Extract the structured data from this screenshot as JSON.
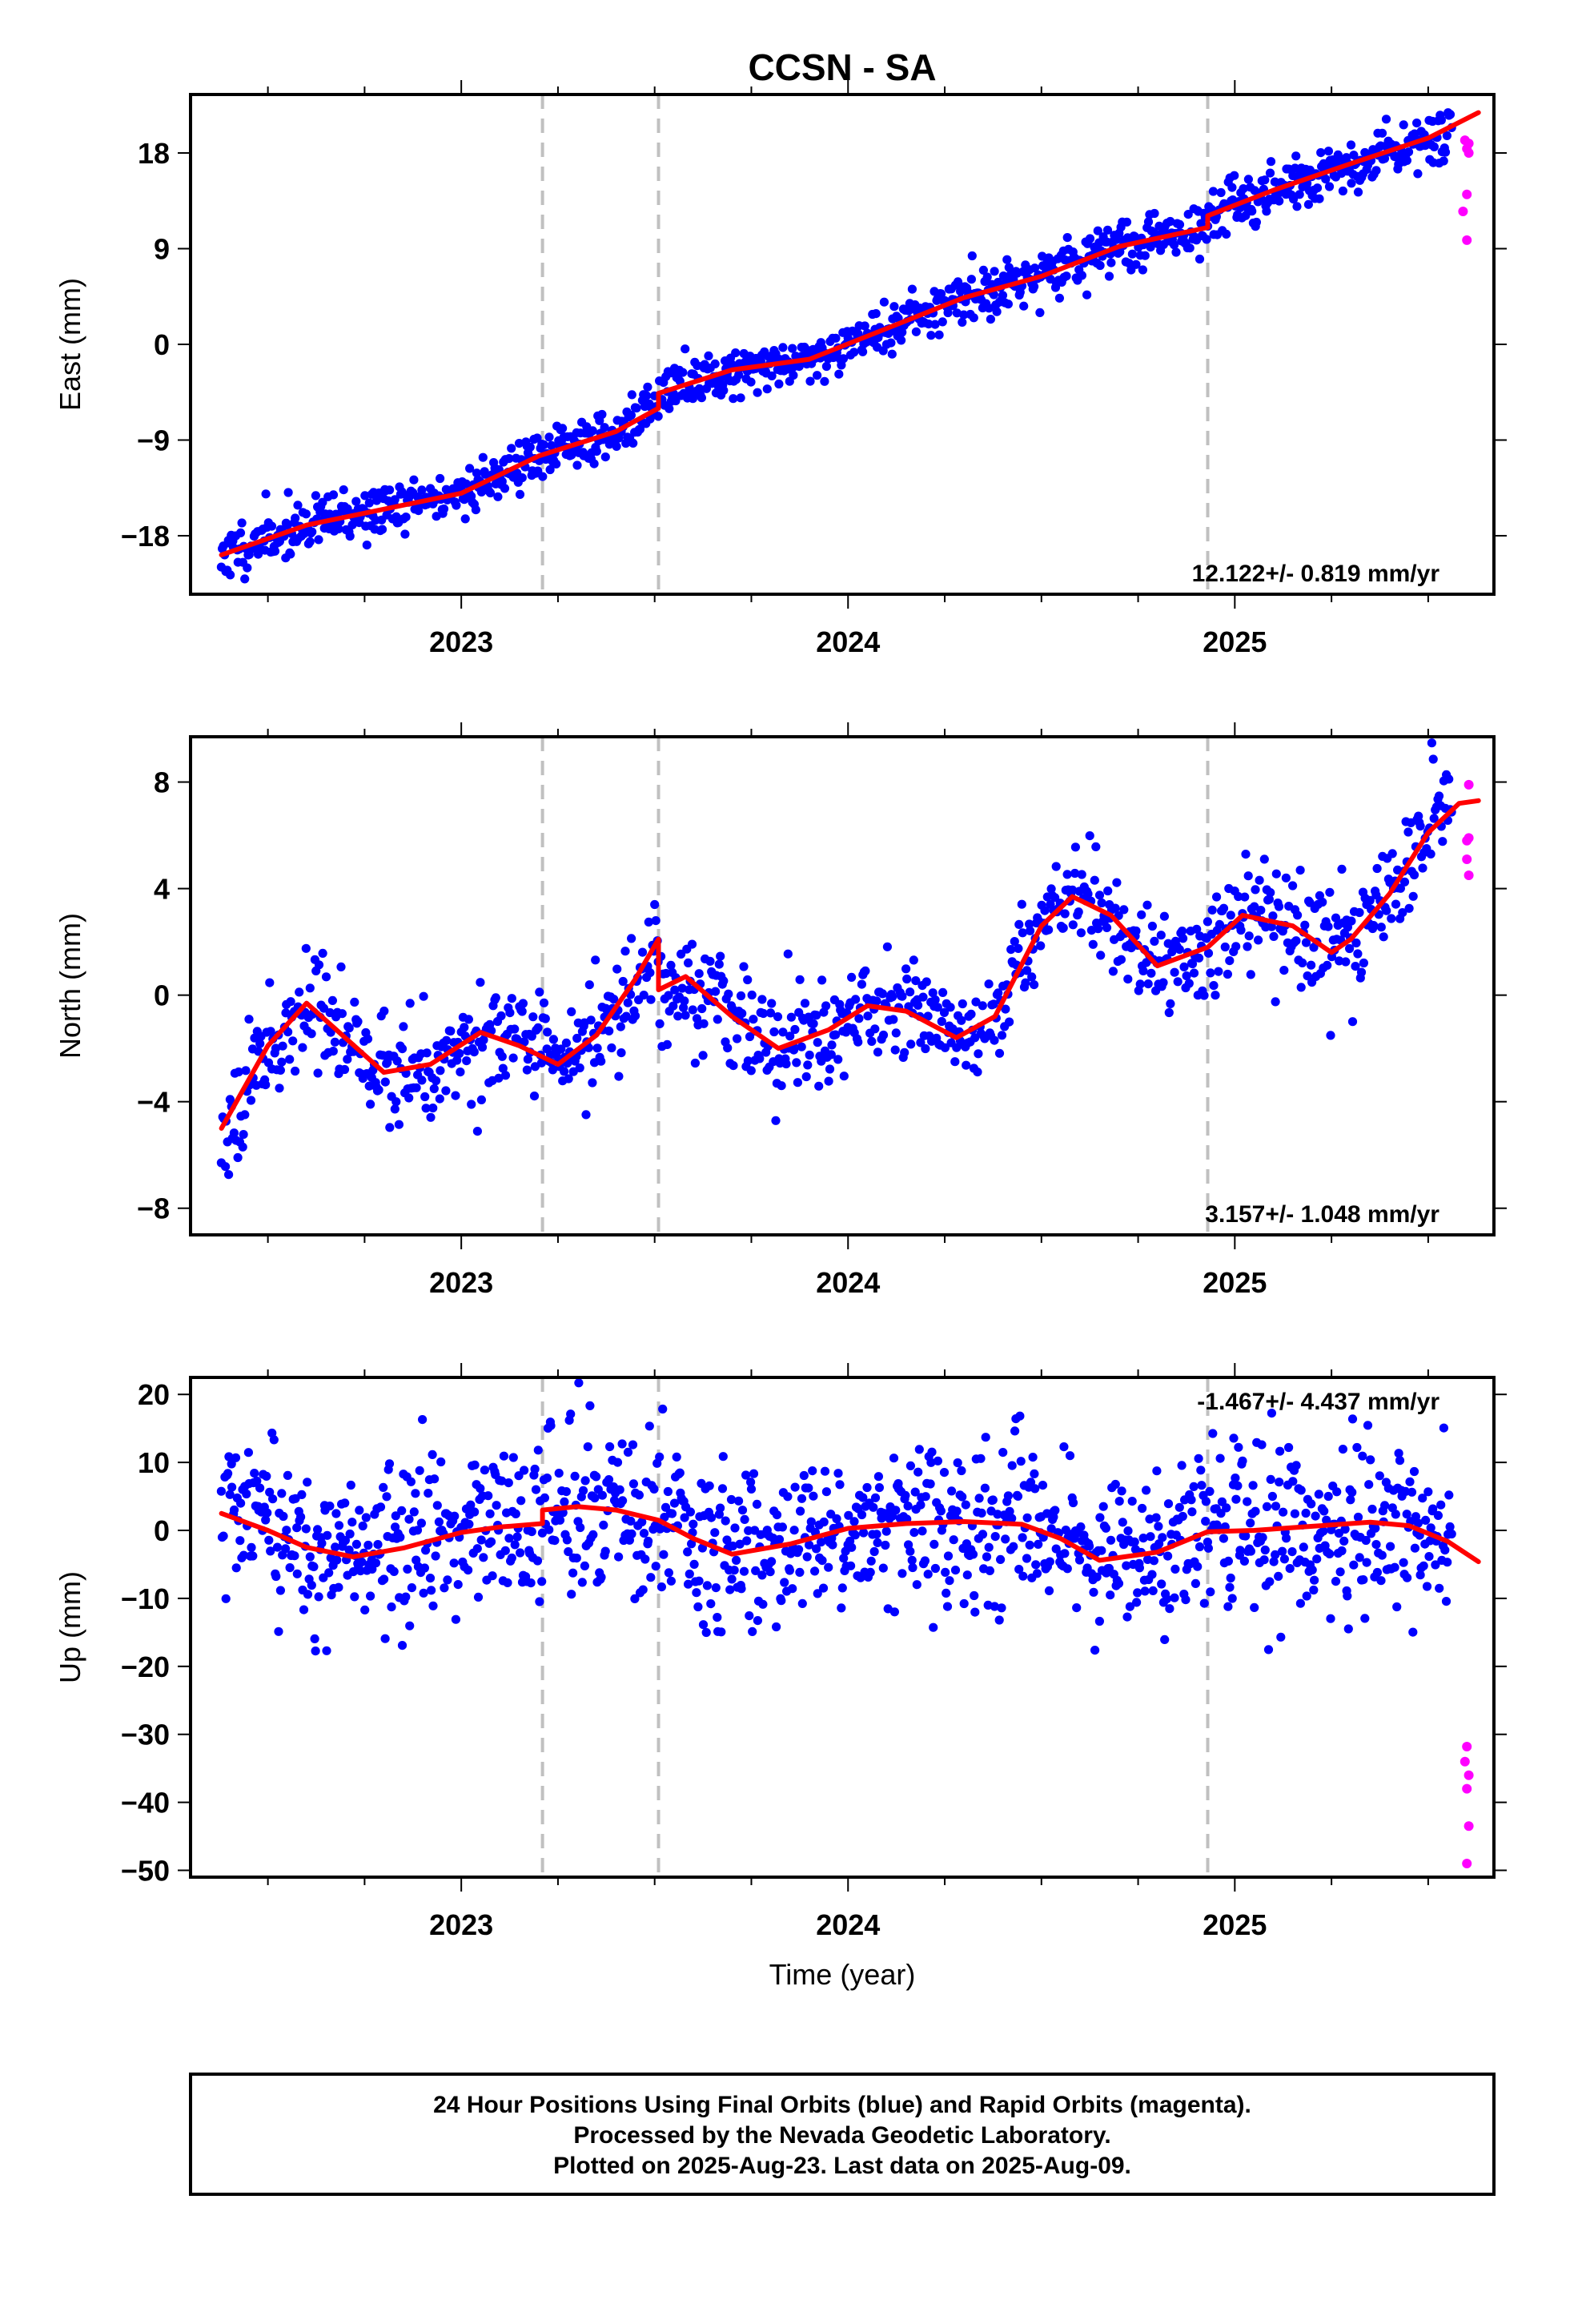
{
  "chart_data": {
    "type": "scatter",
    "title": "CCSN - SA",
    "xlabel": "Time (year)",
    "xlim": [
      2022.3,
      2025.67
    ],
    "x_ticks": [
      2023,
      2024,
      2025
    ],
    "x_tick_labels": [
      "2023",
      "2024",
      "2025"
    ],
    "event_lines_x": [
      2023.21,
      2023.51,
      2024.93
    ],
    "colors": {
      "final_orbits": "#0000ff",
      "rapid_orbits": "#ff00ff",
      "model_fit": "#ff0000",
      "event_lines": "#c0c0c0"
    },
    "panels": [
      {
        "ylabel": "East (mm)",
        "ylim": [
          -23.5,
          23.5
        ],
        "y_ticks": [
          18,
          9,
          0,
          -9,
          -18
        ],
        "y_tick_labels": [
          "18",
          "9",
          "0",
          "−9",
          "−18"
        ],
        "rate_text": "12.122+/- 0.819 mm/yr",
        "rate_position": "bottom-right",
        "trend": {
          "x": [
            2022.38,
            2022.6,
            2022.8,
            2023.0,
            2023.2,
            2023.4,
            2023.51,
            2023.51,
            2023.7,
            2023.9,
            2024.1,
            2024.3,
            2024.5,
            2024.7,
            2024.93,
            2024.93,
            2025.1,
            2025.3,
            2025.5,
            2025.63
          ],
          "y": [
            -19.8,
            -17.0,
            -15.5,
            -14.0,
            -10.5,
            -8.2,
            -6.0,
            -4.6,
            -2.4,
            -1.4,
            1.5,
            4.4,
            6.4,
            9.2,
            11.0,
            12.1,
            14.5,
            17.0,
            19.4,
            21.8
          ]
        },
        "rapid_points": {
          "x": [
            2025.595,
            2025.6,
            2025.605,
            2025.6,
            2025.59,
            2025.6,
            2025.605
          ],
          "y": [
            19.2,
            18.4,
            18.9,
            14.1,
            12.5,
            9.8,
            18.0
          ]
        },
        "scatter": {
          "sigma": 1.2,
          "n": 1100,
          "seed": 11
        }
      },
      {
        "ylabel": "North (mm)",
        "ylim": [
          -9.0,
          9.7
        ],
        "y_ticks": [
          8,
          4,
          0,
          -4,
          -8
        ],
        "y_tick_labels": [
          "8",
          "4",
          "0",
          "−4",
          "−8"
        ],
        "rate_text": "3.157+/- 1.048 mm/yr",
        "rate_position": "bottom-right",
        "trend": {
          "x": [
            2022.38,
            2022.5,
            2022.6,
            2022.7,
            2022.8,
            2022.92,
            2023.05,
            2023.15,
            2023.25,
            2023.35,
            2023.45,
            2023.51,
            2023.51,
            2023.58,
            2023.7,
            2023.82,
            2023.95,
            2024.05,
            2024.15,
            2024.28,
            2024.38,
            2024.5,
            2024.58,
            2024.68,
            2024.8,
            2024.93,
            2025.02,
            2025.15,
            2025.25,
            2025.3,
            2025.4,
            2025.5,
            2025.58,
            2025.63
          ],
          "y": [
            -5.0,
            -1.9,
            -0.3,
            -1.6,
            -2.9,
            -2.6,
            -1.4,
            -1.9,
            -2.6,
            -1.5,
            0.6,
            2.1,
            0.2,
            0.7,
            -0.8,
            -2.0,
            -1.3,
            -0.4,
            -0.6,
            -1.6,
            -0.8,
            2.6,
            3.7,
            3.0,
            1.1,
            1.8,
            3.0,
            2.6,
            1.6,
            2.1,
            3.8,
            6.1,
            7.2,
            7.3
          ]
        },
        "rapid_points": {
          "x": [
            2025.605,
            2025.6,
            2025.605,
            2025.6,
            2025.605
          ],
          "y": [
            7.9,
            5.8,
            5.9,
            5.1,
            4.5
          ]
        },
        "scatter": {
          "sigma": 1.0,
          "n": 1000,
          "seed": 23
        }
      },
      {
        "ylabel": "Up (mm)",
        "ylim": [
          -51,
          22.5
        ],
        "y_ticks": [
          20,
          10,
          0,
          -10,
          -20,
          -30,
          -40,
          -50
        ],
        "y_tick_labels": [
          "20",
          "10",
          "0",
          "−10",
          "−20",
          "−30",
          "−40",
          "−50"
        ],
        "rate_text": "-1.467+/- 4.437 mm/yr",
        "rate_position": "top-right",
        "trend": {
          "x": [
            2022.38,
            2022.5,
            2022.6,
            2022.72,
            2022.85,
            2023.0,
            2023.1,
            2023.21,
            2023.21,
            2023.3,
            2023.4,
            2023.51,
            2023.6,
            2023.7,
            2023.85,
            2024.0,
            2024.15,
            2024.3,
            2024.45,
            2024.55,
            2024.65,
            2024.8,
            2024.93,
            2025.05,
            2025.2,
            2025.35,
            2025.45,
            2025.55,
            2025.63
          ],
          "y": [
            2.5,
            0.0,
            -2.5,
            -3.9,
            -2.6,
            -0.3,
            0.5,
            1.0,
            3.0,
            3.5,
            3.0,
            1.5,
            -1.2,
            -3.5,
            -2.0,
            0.3,
            1.0,
            1.3,
            0.9,
            -1.2,
            -4.4,
            -3.2,
            -0.2,
            0.0,
            0.6,
            1.2,
            0.7,
            -1.6,
            -4.6
          ]
        },
        "rapid_points": {
          "x": [
            2025.6,
            2025.595,
            2025.605,
            2025.6,
            2025.605,
            2025.6
          ],
          "y": [
            -31.8,
            -34.0,
            -36.0,
            -38.0,
            -43.5,
            -49.0
          ]
        },
        "scatter": {
          "sigma": 6.0,
          "n": 1150,
          "seed": 37
        }
      }
    ]
  },
  "footer": {
    "line1": "24 Hour Positions Using Final Orbits (blue) and Rapid Orbits (magenta).",
    "line2": "Processed by the Nevada Geodetic Laboratory.",
    "line3": "Plotted on 2025-Aug-23. Last data on 2025-Aug-09."
  }
}
